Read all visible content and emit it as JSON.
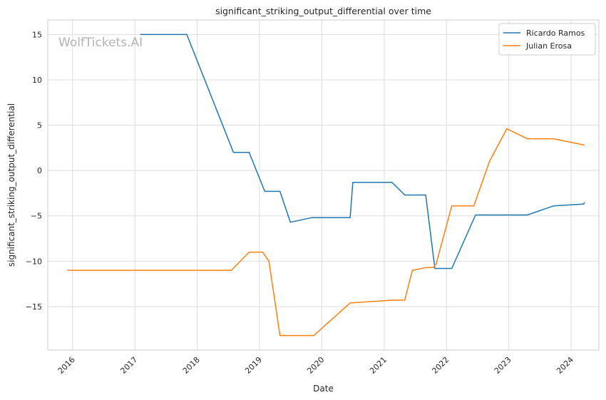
{
  "chart_data": {
    "type": "line",
    "title": "significant_striking_output_differential over time",
    "xlabel": "Date",
    "ylabel": "significant_striking_output_differential",
    "x_ticks": [
      "2016",
      "2017",
      "2018",
      "2019",
      "2020",
      "2021",
      "2022",
      "2023",
      "2024"
    ],
    "y_ticks": [
      -15,
      -10,
      -5,
      0,
      5,
      10,
      15
    ],
    "xlim": [
      "2015-08-09",
      "2024-06-12"
    ],
    "ylim": [
      -19.8,
      16.6
    ],
    "grid": true,
    "legend": "top-right",
    "watermark": "WolfTickets.AI",
    "colors": {
      "Ricardo Ramos": "#1f77b4",
      "Julian Erosa": "#ff7f0e"
    },
    "series": [
      {
        "name": "Ricardo Ramos",
        "color": "#1f77b4",
        "points": [
          [
            "2017-02-01",
            15.0
          ],
          [
            "2017-11-01",
            15.0
          ],
          [
            "2018-08-01",
            2.0
          ],
          [
            "2018-11-01",
            2.0
          ],
          [
            "2019-02-01",
            -2.3
          ],
          [
            "2019-05-01",
            -2.3
          ],
          [
            "2019-07-01",
            -5.7
          ],
          [
            "2019-11-01",
            -5.2
          ],
          [
            "2020-06-15",
            -5.2
          ],
          [
            "2020-07-01",
            -1.3
          ],
          [
            "2021-02-15",
            -1.3
          ],
          [
            "2021-05-01",
            -2.7
          ],
          [
            "2021-09-01",
            -2.7
          ],
          [
            "2021-10-25",
            -10.8
          ],
          [
            "2022-02-01",
            -10.8
          ],
          [
            "2022-06-20",
            -4.9
          ],
          [
            "2023-04-20",
            -4.9
          ],
          [
            "2023-09-20",
            -3.9
          ],
          [
            "2024-03-15",
            -3.7
          ],
          [
            "2024-03-20",
            -3.5
          ]
        ]
      },
      {
        "name": "Julian Erosa",
        "color": "#ff7f0e",
        "points": [
          [
            "2015-12-01",
            -11.0
          ],
          [
            "2018-07-20",
            -11.0
          ],
          [
            "2018-11-01",
            -9.0
          ],
          [
            "2019-01-20",
            -9.0
          ],
          [
            "2019-02-25",
            -10.0
          ],
          [
            "2019-05-01",
            -18.2
          ],
          [
            "2019-11-15",
            -18.2
          ],
          [
            "2020-06-15",
            -14.6
          ],
          [
            "2021-02-20",
            -14.3
          ],
          [
            "2021-05-01",
            -14.3
          ],
          [
            "2021-06-15",
            -11.0
          ],
          [
            "2021-09-01",
            -10.7
          ],
          [
            "2021-10-15",
            -10.7
          ],
          [
            "2021-11-01",
            -10.3
          ],
          [
            "2022-02-01",
            -3.9
          ],
          [
            "2022-06-10",
            -3.9
          ],
          [
            "2022-09-10",
            1.0
          ],
          [
            "2022-12-20",
            4.6
          ],
          [
            "2023-04-20",
            3.5
          ],
          [
            "2023-09-20",
            3.5
          ],
          [
            "2024-03-20",
            2.8
          ]
        ]
      }
    ]
  }
}
